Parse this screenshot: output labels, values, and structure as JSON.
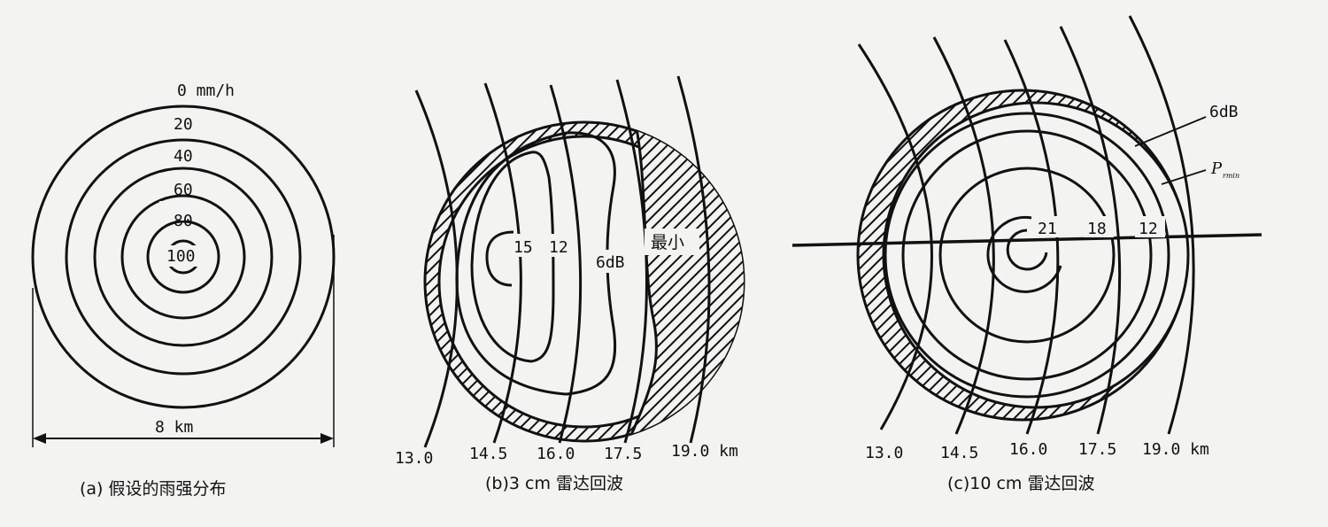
{
  "panel_a": {
    "rings": [
      "0 mm/h",
      "20",
      "40",
      "60",
      "80",
      "100"
    ],
    "width_label": "8 km",
    "caption": "(a) 假设的雨强分布"
  },
  "panel_b": {
    "contours": [
      "15",
      "12",
      "6dB",
      "最小"
    ],
    "range_ticks": [
      "13.0",
      "14.5",
      "16.0",
      "17.5",
      "19.0 km"
    ],
    "caption": "(b)3 cm 雷达回波"
  },
  "panel_c": {
    "contours": [
      "21",
      "18",
      "12"
    ],
    "outer_labels": [
      "6dB"
    ],
    "p_label": "P",
    "p_sub": "rmin",
    "range_ticks": [
      "13.0",
      "14.5",
      "16.0",
      "17.5",
      "19.0 km"
    ],
    "caption": "(c)10 cm 雷达回波"
  }
}
